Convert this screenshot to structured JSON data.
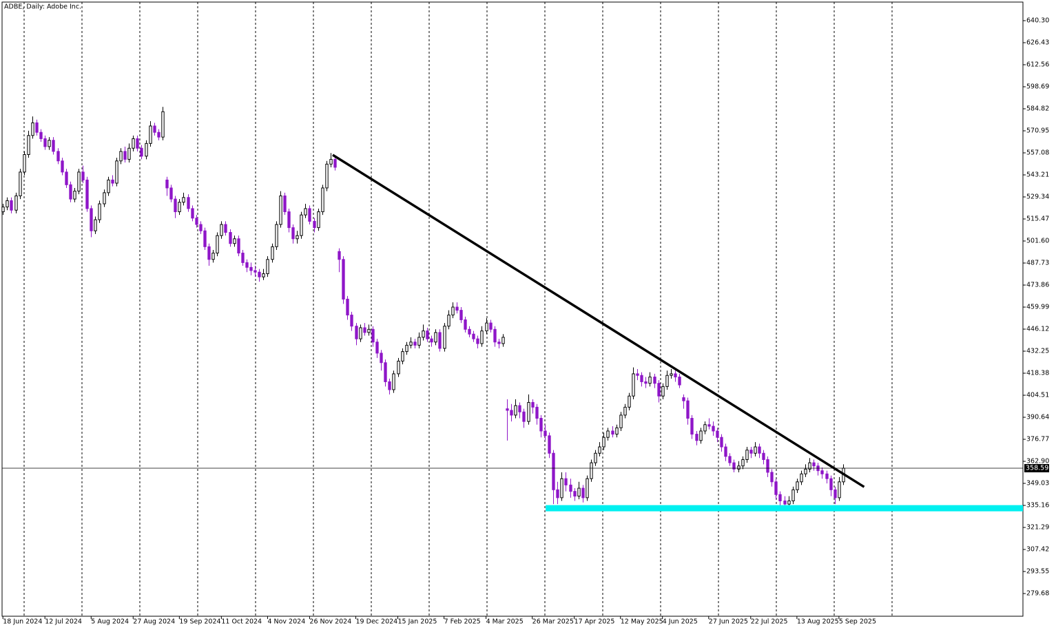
{
  "chart_data": {
    "type": "candlestick",
    "title": "ADBE, Daily: Adobe Inc.",
    "bull_color": "#ffffff",
    "bull_edge": "#000000",
    "bear_color": "#8f16c8",
    "bear_edge": "#8f16c8",
    "xlim": [
      -0.2,
      242.8
    ],
    "ylim": [
      265.4,
      652.0
    ],
    "yticks": [
      279.68,
      293.55,
      307.42,
      321.29,
      335.16,
      349.03,
      {
        "value": 362.9,
        "label": "362.90"
      },
      376.77,
      390.64,
      404.51,
      418.38,
      432.25,
      446.12,
      459.99,
      473.86,
      487.73,
      {
        "value": 501.6,
        "label": "501.60"
      },
      515.47,
      529.34,
      543.21,
      557.08,
      570.95,
      584.82,
      598.69,
      612.56,
      626.43,
      {
        "value": 640.3,
        "label": "640.30"
      }
    ],
    "xticks": [
      {
        "value": 0,
        "label": "18 Jun 2024"
      },
      {
        "value": 10,
        "label": "12 Jul 2024"
      },
      {
        "value": 21,
        "label": "5 Aug 2024"
      },
      {
        "value": 31,
        "label": "27 Aug 2024"
      },
      {
        "value": 42,
        "label": "19 Sep 2024"
      },
      {
        "value": 52,
        "label": "11 Oct 2024"
      },
      {
        "value": 63,
        "label": "4 Nov 2024"
      },
      {
        "value": 73,
        "label": "26 Nov 2024"
      },
      {
        "value": 84,
        "label": "19 Dec 2024"
      },
      {
        "value": 94,
        "label": "15 Jan 2025"
      },
      {
        "value": 105,
        "label": "7 Feb 2025"
      },
      {
        "value": 115,
        "label": "4 Mar 2025"
      },
      {
        "value": 126,
        "label": "26 Mar 2025"
      },
      {
        "value": 136,
        "label": "17 Apr 2025"
      },
      {
        "value": 147,
        "label": "12 May 2025"
      },
      {
        "value": 157,
        "label": "4 Jun 2025"
      },
      {
        "value": 168,
        "label": "27 Jun 2025"
      },
      {
        "value": 178,
        "label": "22 Jul 2025"
      },
      {
        "value": 189,
        "label": "13 Aug 2025"
      },
      {
        "value": 199,
        "label": "5 Sep 2025"
      }
    ],
    "last_price": 358.59,
    "lines": [
      {
        "color": "#000000",
        "x": [
          78.5,
          205
        ],
        "y": [
          555.8,
          346.8
        ]
      },
      {
        "color": "#00f0f0",
        "x": [
          129.2,
          242.8
        ],
        "y": [
          333.4,
          333.4
        ]
      }
    ],
    "ohlc": [
      [
        520,
        525,
        518,
        523
      ],
      [
        523,
        529,
        521,
        527
      ],
      [
        527,
        529,
        519,
        521
      ],
      [
        521,
        532,
        519,
        530
      ],
      [
        530,
        547,
        528,
        545
      ],
      [
        545,
        558,
        543,
        556
      ],
      [
        556,
        571,
        554,
        568
      ],
      [
        568,
        580,
        566,
        576
      ],
      [
        576,
        578,
        568,
        570
      ],
      [
        570,
        572,
        564,
        566
      ],
      [
        566,
        568,
        559,
        561
      ],
      [
        561,
        567,
        559,
        565
      ],
      [
        565,
        567,
        556,
        558
      ],
      [
        558,
        560,
        550,
        552
      ],
      [
        552,
        554,
        543,
        545
      ],
      [
        545,
        547,
        535,
        537
      ],
      [
        537,
        539,
        526,
        528
      ],
      [
        528,
        535,
        526,
        533
      ],
      [
        533,
        547,
        531,
        545
      ],
      [
        545,
        549,
        538,
        540
      ],
      [
        540,
        542,
        520,
        522
      ],
      [
        522,
        524,
        504,
        508
      ],
      [
        508,
        517,
        506,
        515
      ],
      [
        515,
        527,
        513,
        525
      ],
      [
        525,
        534,
        523,
        532
      ],
      [
        532,
        542,
        530,
        540
      ],
      [
        540,
        543,
        536,
        538
      ],
      [
        538,
        554,
        536,
        552
      ],
      [
        552,
        560,
        550,
        558
      ],
      [
        558,
        561,
        551,
        553
      ],
      [
        553,
        563,
        551,
        560
      ],
      [
        560,
        568,
        558,
        566
      ],
      [
        566,
        568,
        558,
        560
      ],
      [
        560,
        562,
        553,
        555
      ],
      [
        555,
        565,
        553,
        563
      ],
      [
        563,
        577,
        561,
        574
      ],
      [
        574,
        576,
        568,
        570
      ],
      [
        570,
        572,
        565,
        567
      ],
      [
        567,
        586,
        565,
        583
      ],
      [
        540,
        542,
        530,
        535
      ],
      [
        535,
        537,
        526,
        528
      ],
      [
        528,
        530,
        516,
        520
      ],
      [
        520,
        528,
        518,
        526
      ],
      [
        526,
        532,
        524,
        529
      ],
      [
        529,
        531,
        520,
        522
      ],
      [
        522,
        524,
        514,
        516
      ],
      [
        516,
        518,
        510,
        512
      ],
      [
        512,
        514,
        506,
        508
      ],
      [
        508,
        510,
        496,
        498
      ],
      [
        498,
        500,
        486,
        490
      ],
      [
        490,
        496,
        488,
        494
      ],
      [
        494,
        507,
        492,
        505
      ],
      [
        505,
        514,
        503,
        512
      ],
      [
        512,
        514,
        505,
        507
      ],
      [
        507,
        509,
        498,
        500
      ],
      [
        500,
        505,
        498,
        503
      ],
      [
        503,
        505,
        492,
        494
      ],
      [
        494,
        496,
        486,
        488
      ],
      [
        488,
        490,
        482,
        485
      ],
      [
        485,
        488,
        480,
        483
      ],
      [
        483,
        486,
        479,
        482
      ],
      [
        482,
        484,
        476,
        479
      ],
      [
        479,
        484,
        477,
        481
      ],
      [
        481,
        492,
        479,
        490
      ],
      [
        490,
        500,
        488,
        498
      ],
      [
        498,
        514,
        496,
        512
      ],
      [
        512,
        533,
        510,
        530
      ],
      [
        530,
        532,
        518,
        520
      ],
      [
        520,
        522,
        507,
        510
      ],
      [
        510,
        512,
        500,
        503
      ],
      [
        503,
        508,
        500,
        505
      ],
      [
        505,
        520,
        503,
        518
      ],
      [
        518,
        525,
        516,
        522
      ],
      [
        522,
        524,
        512,
        514
      ],
      [
        514,
        516,
        507,
        510
      ],
      [
        510,
        522,
        508,
        520
      ],
      [
        520,
        537,
        518,
        535
      ],
      [
        535,
        552,
        533,
        550
      ],
      [
        550,
        557,
        548,
        553
      ],
      [
        553,
        555,
        546,
        548
      ],
      [
        495,
        497,
        482,
        490
      ],
      [
        490,
        492,
        462,
        465
      ],
      [
        465,
        467,
        452,
        455
      ],
      [
        455,
        457,
        445,
        448
      ],
      [
        448,
        450,
        436,
        440
      ],
      [
        440,
        449,
        438,
        447
      ],
      [
        447,
        450,
        442,
        444
      ],
      [
        444,
        449,
        442,
        446
      ],
      [
        446,
        448,
        435,
        438
      ],
      [
        438,
        440,
        428,
        431
      ],
      [
        431,
        433,
        420,
        425
      ],
      [
        425,
        427,
        410,
        413
      ],
      [
        413,
        415,
        405,
        408
      ],
      [
        408,
        420,
        406,
        418
      ],
      [
        418,
        428,
        416,
        426
      ],
      [
        426,
        434,
        424,
        432
      ],
      [
        432,
        438,
        430,
        436
      ],
      [
        436,
        441,
        434,
        438
      ],
      [
        438,
        440,
        434,
        436
      ],
      [
        436,
        444,
        434,
        441
      ],
      [
        441,
        449,
        439,
        445
      ],
      [
        445,
        447,
        438,
        440
      ],
      [
        440,
        442,
        435,
        438
      ],
      [
        438,
        446,
        436,
        444
      ],
      [
        444,
        446,
        432,
        434
      ],
      [
        434,
        450,
        432,
        448
      ],
      [
        448,
        458,
        446,
        455
      ],
      [
        455,
        463,
        453,
        460
      ],
      [
        460,
        463,
        456,
        458
      ],
      [
        458,
        460,
        450,
        452
      ],
      [
        452,
        454,
        444,
        446
      ],
      [
        446,
        448,
        441,
        443
      ],
      [
        443,
        445,
        438,
        440
      ],
      [
        440,
        442,
        434,
        437
      ],
      [
        437,
        448,
        435,
        445
      ],
      [
        445,
        453,
        443,
        450
      ],
      [
        450,
        452,
        444,
        446
      ],
      [
        446,
        448,
        435,
        438
      ],
      [
        438,
        440,
        434,
        437
      ],
      [
        437,
        443,
        435,
        441
      ],
      [
        396,
        402,
        376,
        395
      ],
      [
        395,
        399,
        388,
        392
      ],
      [
        392,
        402,
        390,
        398
      ],
      [
        398,
        400,
        390,
        394
      ],
      [
        394,
        396,
        384,
        388
      ],
      [
        388,
        405,
        386,
        400
      ],
      [
        400,
        402,
        393,
        397
      ],
      [
        397,
        399,
        386,
        390
      ],
      [
        390,
        392,
        378,
        382
      ],
      [
        382,
        386,
        376,
        379
      ],
      [
        379,
        381,
        365,
        368
      ],
      [
        368,
        370,
        336,
        345
      ],
      [
        345,
        350,
        336,
        340
      ],
      [
        340,
        356,
        338,
        352
      ],
      [
        352,
        356,
        344,
        348
      ],
      [
        348,
        352,
        340,
        344
      ],
      [
        344,
        346,
        338,
        341
      ],
      [
        341,
        350,
        339,
        346
      ],
      [
        346,
        348,
        337,
        340
      ],
      [
        340,
        354,
        338,
        352
      ],
      [
        352,
        364,
        350,
        362
      ],
      [
        362,
        370,
        360,
        368
      ],
      [
        368,
        375,
        366,
        372
      ],
      [
        372,
        381,
        370,
        378
      ],
      [
        378,
        384,
        376,
        382
      ],
      [
        382,
        385,
        378,
        380
      ],
      [
        380,
        386,
        378,
        384
      ],
      [
        384,
        394,
        382,
        392
      ],
      [
        392,
        399,
        390,
        397
      ],
      [
        397,
        406,
        395,
        404
      ],
      [
        404,
        422,
        402,
        418
      ],
      [
        418,
        421,
        414,
        417
      ],
      [
        417,
        419,
        410,
        413
      ],
      [
        413,
        416,
        409,
        412
      ],
      [
        412,
        419,
        410,
        416
      ],
      [
        416,
        418,
        409,
        412
      ],
      [
        412,
        414,
        400,
        404
      ],
      [
        404,
        412,
        402,
        410
      ],
      [
        410,
        420,
        408,
        417
      ],
      [
        417,
        421,
        415,
        418
      ],
      [
        418,
        420,
        413,
        416
      ],
      [
        416,
        418,
        409,
        411
      ],
      [
        403,
        405,
        396,
        401
      ],
      [
        401,
        403,
        386,
        390
      ],
      [
        390,
        392,
        377,
        380
      ],
      [
        380,
        382,
        373,
        376
      ],
      [
        376,
        384,
        374,
        382
      ],
      [
        382,
        388,
        380,
        386
      ],
      [
        386,
        390,
        383,
        385
      ],
      [
        385,
        388,
        379,
        382
      ],
      [
        382,
        384,
        375,
        378
      ],
      [
        378,
        380,
        369,
        372
      ],
      [
        372,
        374,
        363,
        366
      ],
      [
        366,
        368,
        360,
        362
      ],
      [
        362,
        364,
        356,
        358
      ],
      [
        358,
        363,
        356,
        360
      ],
      [
        360,
        366,
        358,
        364
      ],
      [
        364,
        372,
        362,
        370
      ],
      [
        370,
        372,
        365,
        368
      ],
      [
        368,
        375,
        366,
        372
      ],
      [
        372,
        374,
        365,
        368
      ],
      [
        368,
        370,
        361,
        364
      ],
      [
        364,
        366,
        353,
        356
      ],
      [
        356,
        358,
        347,
        350
      ],
      [
        350,
        352,
        339,
        342
      ],
      [
        342,
        344,
        335,
        338
      ],
      [
        338,
        341,
        332,
        336
      ],
      [
        336,
        341,
        333,
        338
      ],
      [
        338,
        347,
        336,
        345
      ],
      [
        345,
        352,
        343,
        350
      ],
      [
        350,
        357,
        348,
        355
      ],
      [
        355,
        361,
        353,
        358
      ],
      [
        358,
        365,
        356,
        362
      ],
      [
        362,
        364,
        357,
        360
      ],
      [
        360,
        362,
        354,
        357
      ],
      [
        357,
        359,
        352,
        355
      ],
      [
        355,
        357,
        349,
        352
      ],
      [
        352,
        354,
        341,
        345
      ],
      [
        345,
        347,
        336,
        340
      ],
      [
        340,
        353,
        338,
        350
      ],
      [
        350,
        361,
        348,
        358.59
      ]
    ]
  }
}
